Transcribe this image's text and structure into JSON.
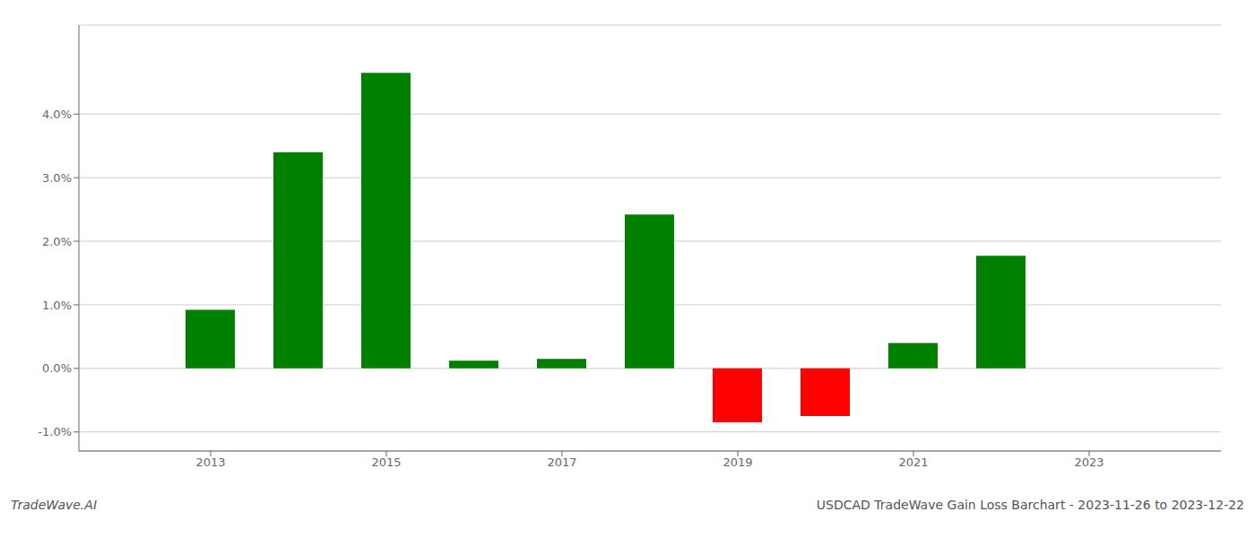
{
  "chart_data": {
    "type": "bar",
    "title": "USDCAD TradeWave Gain Loss Barchart - 2023-11-26 to 2023-12-22",
    "annotations": [
      "TradeWave.AI"
    ],
    "x": [
      2013,
      2014,
      2015,
      2016,
      2017,
      2018,
      2019,
      2020,
      2021,
      2022,
      2023
    ],
    "values": [
      0.0092,
      0.034,
      0.0465,
      0.0012,
      0.0015,
      0.0242,
      -0.0085,
      -0.0075,
      0.004,
      0.0177,
      null
    ],
    "colors": [
      "#008000",
      "#008000",
      "#008000",
      "#008000",
      "#008000",
      "#008000",
      "#ff0000",
      "#ff0000",
      "#008000",
      "#008000",
      null
    ],
    "xlim": [
      2011.5,
      2024.5
    ],
    "xticks": [
      2013,
      2015,
      2017,
      2019,
      2021,
      2023
    ],
    "ylim": [
      -0.013,
      0.054
    ],
    "yticks": [
      {
        "value": -0.01,
        "label": "-1.0%"
      },
      {
        "value": 0.0,
        "label": "0.0%"
      },
      {
        "value": 0.01,
        "label": "1.0%"
      },
      {
        "value": 0.02,
        "label": "2.0%"
      },
      {
        "value": 0.03,
        "label": "3.0%"
      },
      {
        "value": 0.04,
        "label": "4.0%"
      }
    ],
    "grid": true
  }
}
